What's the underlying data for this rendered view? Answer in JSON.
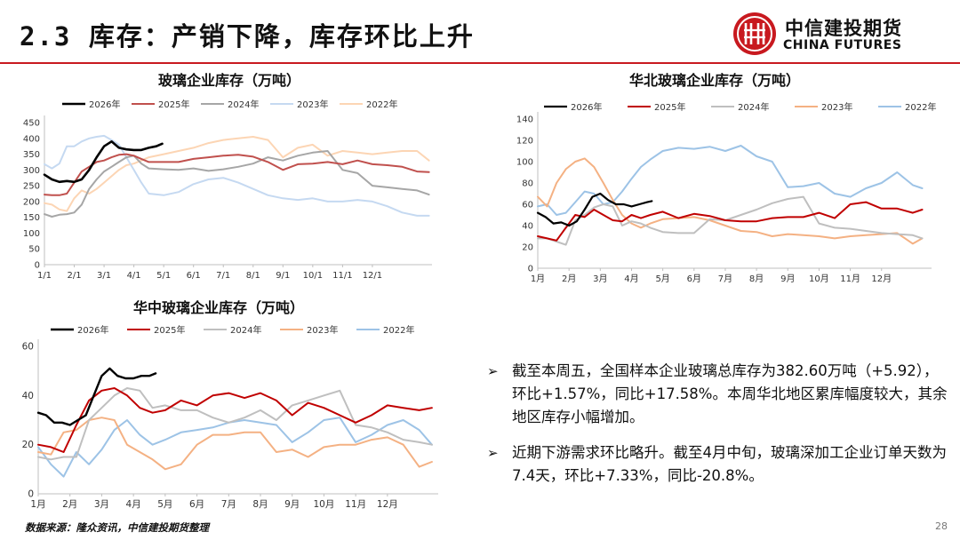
{
  "header": {
    "title": "2.3 库存：产销下降，库存环比上升"
  },
  "logo": {
    "cn": "中信建投期货",
    "en": "CHINA FUTURES"
  },
  "colors": {
    "accent": "#c8191f"
  },
  "chart_data": [
    {
      "type": "line",
      "title": "玻璃企业库存（万吨）",
      "ylim": [
        0,
        450
      ],
      "yticks": [
        0,
        50,
        100,
        150,
        200,
        250,
        300,
        350,
        400,
        450
      ],
      "xticks": [
        "1/1",
        "2/1",
        "3/1",
        "4/1",
        "5/1",
        "6/1",
        "7/1",
        "8/1",
        "9/1",
        "10/1",
        "11/1",
        "12/1"
      ],
      "x_range": [
        0,
        13
      ],
      "series": [
        {
          "name": "2026年",
          "color": "#000000",
          "width": 2.6,
          "x": [
            0,
            0.25,
            0.5,
            0.75,
            1,
            1.25,
            1.5,
            1.75,
            2,
            2.25,
            2.5,
            2.75,
            3,
            3.25,
            3.5,
            3.75,
            3.95
          ],
          "y": [
            285,
            270,
            262,
            265,
            262,
            270,
            300,
            340,
            375,
            390,
            370,
            365,
            363,
            363,
            370,
            375,
            383
          ]
        },
        {
          "name": "2025年",
          "color": "#c0504d",
          "width": 2,
          "x": [
            0,
            0.25,
            0.5,
            0.75,
            1,
            1.25,
            1.5,
            1.75,
            2,
            2.25,
            2.5,
            2.75,
            3,
            3.25,
            3.5,
            4,
            4.5,
            5,
            5.5,
            6,
            6.5,
            7,
            7.5,
            8,
            8.5,
            9,
            9.5,
            10,
            10.5,
            11,
            11.5,
            12,
            12.5,
            12.9
          ],
          "y": [
            222,
            220,
            220,
            225,
            260,
            295,
            310,
            325,
            330,
            340,
            348,
            350,
            345,
            335,
            325,
            325,
            325,
            335,
            340,
            345,
            348,
            342,
            325,
            300,
            318,
            320,
            325,
            318,
            330,
            318,
            315,
            310,
            295,
            293
          ]
        },
        {
          "name": "2024年",
          "color": "#a6a6a6",
          "width": 2,
          "x": [
            0,
            0.25,
            0.5,
            0.75,
            1,
            1.25,
            1.5,
            1.75,
            2,
            2.25,
            2.5,
            2.75,
            3,
            3.25,
            3.5,
            4,
            4.5,
            5,
            5.5,
            6,
            6.5,
            7,
            7.5,
            8,
            8.5,
            9,
            9.5,
            10,
            10.5,
            11,
            11.5,
            12,
            12.5,
            12.9
          ],
          "y": [
            160,
            152,
            158,
            160,
            165,
            190,
            240,
            270,
            295,
            310,
            325,
            340,
            345,
            320,
            305,
            302,
            300,
            305,
            297,
            302,
            310,
            320,
            340,
            330,
            345,
            355,
            360,
            300,
            290,
            250,
            245,
            240,
            235,
            222
          ]
        },
        {
          "name": "2023年",
          "color": "#c5d9f1",
          "width": 2,
          "x": [
            0,
            0.25,
            0.5,
            0.75,
            1,
            1.25,
            1.5,
            1.75,
            2,
            2.25,
            2.5,
            2.75,
            3,
            3.25,
            3.5,
            4,
            4.5,
            5,
            5.5,
            6,
            6.5,
            7,
            7.5,
            8,
            8.5,
            9,
            9.5,
            10,
            10.5,
            11,
            11.5,
            12,
            12.5,
            12.9
          ],
          "y": [
            318,
            305,
            320,
            375,
            375,
            390,
            400,
            405,
            408,
            395,
            380,
            340,
            300,
            260,
            225,
            220,
            230,
            255,
            270,
            275,
            260,
            240,
            220,
            210,
            205,
            210,
            200,
            200,
            205,
            200,
            185,
            165,
            155,
            155
          ]
        },
        {
          "name": "2022年",
          "color": "#fcd5b4",
          "width": 2,
          "x": [
            0,
            0.25,
            0.5,
            0.75,
            1,
            1.25,
            1.5,
            1.75,
            2,
            2.25,
            2.5,
            2.75,
            3,
            3.25,
            3.5,
            4,
            4.5,
            5,
            5.5,
            6,
            6.5,
            7,
            7.5,
            8,
            8.5,
            9,
            9.5,
            10,
            10.5,
            11,
            11.5,
            12,
            12.5,
            12.9
          ],
          "y": [
            195,
            190,
            175,
            170,
            210,
            235,
            225,
            240,
            260,
            280,
            300,
            315,
            320,
            330,
            340,
            350,
            360,
            370,
            385,
            395,
            400,
            405,
            395,
            340,
            370,
            380,
            345,
            360,
            355,
            350,
            355,
            360,
            360,
            330
          ]
        }
      ]
    },
    {
      "type": "line",
      "title": "华北玻璃企业库存（万吨）",
      "ylim": [
        0,
        140
      ],
      "yticks": [
        0,
        20,
        40,
        60,
        80,
        100,
        120,
        140
      ],
      "xticks": [
        "1月",
        "2月",
        "3月",
        "4月",
        "5月",
        "6月",
        "7月",
        "8月",
        "9月",
        "10月",
        "11月",
        "12月"
      ],
      "x_range": [
        0,
        12.6
      ],
      "series": [
        {
          "name": "2026年",
          "color": "#000000",
          "width": 2.2,
          "x": [
            0,
            0.25,
            0.5,
            0.75,
            1,
            1.25,
            1.5,
            1.75,
            2,
            2.25,
            2.5,
            2.75,
            3,
            3.25,
            3.5,
            3.65
          ],
          "y": [
            52,
            48,
            42,
            43,
            40,
            44,
            55,
            67,
            70,
            64,
            60,
            60,
            58,
            60,
            62,
            63
          ]
        },
        {
          "name": "2025年",
          "color": "#c00000",
          "width": 2,
          "x": [
            0,
            0.3,
            0.6,
            0.9,
            1.2,
            1.5,
            1.8,
            2.1,
            2.4,
            2.7,
            3,
            3.3,
            3.6,
            4,
            4.5,
            5,
            5.5,
            6,
            6.5,
            7,
            7.5,
            8,
            8.5,
            9,
            9.5,
            10,
            10.5,
            11,
            11.5,
            12,
            12.3
          ],
          "y": [
            30,
            28,
            26,
            38,
            50,
            48,
            55,
            50,
            45,
            44,
            50,
            47,
            50,
            53,
            47,
            51,
            49,
            45,
            44,
            44,
            47,
            48,
            48,
            52,
            47,
            60,
            62,
            56,
            56,
            52,
            55
          ]
        },
        {
          "name": "2024年",
          "color": "#bfbfbf",
          "width": 2,
          "x": [
            0,
            0.3,
            0.6,
            0.9,
            1.2,
            1.5,
            1.8,
            2.1,
            2.4,
            2.7,
            3,
            3.3,
            3.6,
            4,
            4.5,
            5,
            5.5,
            6,
            6.5,
            7,
            7.5,
            8,
            8.5,
            9,
            9.5,
            10,
            10.5,
            11,
            11.5,
            12,
            12.3
          ],
          "y": [
            28,
            28,
            25,
            22,
            45,
            50,
            57,
            60,
            58,
            40,
            44,
            42,
            38,
            34,
            33,
            33,
            46,
            45,
            50,
            55,
            61,
            65,
            67,
            42,
            38,
            37,
            35,
            33,
            32,
            31,
            28
          ]
        },
        {
          "name": "2023年",
          "color": "#f4b183",
          "width": 2,
          "x": [
            0,
            0.3,
            0.6,
            0.9,
            1.2,
            1.5,
            1.8,
            2.1,
            2.4,
            2.7,
            3,
            3.3,
            3.6,
            4,
            4.5,
            5,
            5.5,
            6,
            6.5,
            7,
            7.5,
            8,
            8.5,
            9,
            9.5,
            10,
            10.5,
            11,
            11.5,
            12,
            12.3
          ],
          "y": [
            67,
            58,
            80,
            93,
            100,
            103,
            95,
            80,
            64,
            50,
            42,
            38,
            42,
            46,
            47,
            48,
            45,
            40,
            35,
            34,
            30,
            32,
            31,
            30,
            28,
            30,
            31,
            32,
            33,
            23,
            28
          ]
        },
        {
          "name": "2022年",
          "color": "#9dc3e6",
          "width": 2,
          "x": [
            0,
            0.3,
            0.6,
            0.9,
            1.2,
            1.5,
            1.8,
            2.1,
            2.4,
            2.7,
            3,
            3.3,
            3.6,
            4,
            4.5,
            5,
            5.5,
            6,
            6.5,
            7,
            7.5,
            8,
            8.5,
            9,
            9.5,
            10,
            10.5,
            11,
            11.5,
            12,
            12.3
          ],
          "y": [
            58,
            60,
            50,
            52,
            62,
            72,
            70,
            60,
            62,
            72,
            84,
            95,
            102,
            110,
            113,
            112,
            114,
            110,
            115,
            105,
            100,
            76,
            77,
            80,
            70,
            67,
            75,
            80,
            90,
            78,
            75
          ]
        }
      ]
    },
    {
      "type": "line",
      "title": "华中玻璃企业库存（万吨）",
      "ylim": [
        0,
        60
      ],
      "yticks": [
        0,
        20,
        40,
        60
      ],
      "xticks": [
        "1月",
        "2月",
        "3月",
        "4月",
        "5月",
        "6月",
        "7月",
        "8月",
        "9月",
        "10月",
        "11月",
        "12月"
      ],
      "x_range": [
        0,
        12.6
      ],
      "series": [
        {
          "name": "2026年",
          "color": "#000000",
          "width": 2.4,
          "x": [
            0,
            0.25,
            0.5,
            0.75,
            1,
            1.25,
            1.5,
            1.75,
            2,
            2.25,
            2.5,
            2.75,
            3,
            3.25,
            3.5,
            3.7
          ],
          "y": [
            33,
            32,
            29,
            29,
            28,
            30,
            32,
            40,
            48,
            51,
            48,
            47,
            47,
            48,
            48,
            49
          ]
        },
        {
          "name": "2025年",
          "color": "#c00000",
          "width": 2,
          "x": [
            0,
            0.4,
            0.8,
            1.2,
            1.6,
            2,
            2.4,
            2.8,
            3.2,
            3.6,
            4,
            4.5,
            5,
            5.5,
            6,
            6.5,
            7,
            7.5,
            8,
            8.5,
            9,
            9.5,
            10,
            10.5,
            11,
            11.5,
            12,
            12.4
          ],
          "y": [
            20,
            19,
            17,
            28,
            38,
            42,
            43,
            40,
            35,
            33,
            34,
            38,
            36,
            40,
            41,
            39,
            41,
            38,
            32,
            37,
            35,
            32,
            29,
            32,
            36,
            35,
            34,
            35
          ]
        },
        {
          "name": "2024年",
          "color": "#bfbfbf",
          "width": 2,
          "x": [
            0,
            0.4,
            0.8,
            1.2,
            1.6,
            2,
            2.4,
            2.8,
            3.2,
            3.6,
            4,
            4.5,
            5,
            5.5,
            6,
            6.5,
            7,
            7.5,
            8,
            8.5,
            9,
            9.5,
            10,
            10.5,
            11,
            11.5,
            12,
            12.4
          ],
          "y": [
            15,
            14,
            15,
            15,
            30,
            35,
            40,
            43,
            42,
            35,
            36,
            34,
            34,
            31,
            29,
            31,
            34,
            30,
            36,
            38,
            40,
            42,
            28,
            27,
            25,
            22,
            21,
            20
          ]
        },
        {
          "name": "2023年",
          "color": "#f4b183",
          "width": 2,
          "x": [
            0,
            0.4,
            0.8,
            1.2,
            1.6,
            2,
            2.4,
            2.8,
            3.2,
            3.6,
            4,
            4.5,
            5,
            5.5,
            6,
            6.5,
            7,
            7.5,
            8,
            8.5,
            9,
            9.5,
            10,
            10.5,
            11,
            11.5,
            12,
            12.4
          ],
          "y": [
            17,
            16,
            25,
            26,
            30,
            31,
            30,
            20,
            17,
            14,
            10,
            12,
            20,
            24,
            24,
            25,
            25,
            17,
            18,
            15,
            19,
            20,
            20,
            22,
            23,
            20,
            11,
            13
          ]
        },
        {
          "name": "2022年",
          "color": "#9dc3e6",
          "width": 2,
          "x": [
            0,
            0.4,
            0.8,
            1.2,
            1.6,
            2,
            2.4,
            2.8,
            3.2,
            3.6,
            4,
            4.5,
            5,
            5.5,
            6,
            6.5,
            7,
            7.5,
            8,
            8.5,
            9,
            9.5,
            10,
            10.5,
            11,
            11.5,
            12,
            12.4
          ],
          "y": [
            19,
            12,
            7,
            17,
            12,
            18,
            26,
            30,
            24,
            20,
            22,
            25,
            26,
            27,
            29,
            30,
            29,
            28,
            21,
            25,
            30,
            31,
            21,
            24,
            28,
            30,
            26,
            20
          ]
        }
      ]
    }
  ],
  "bullets": [
    {
      "marker": "➢",
      "text": "截至本周五，全国样本企业玻璃总库存为382.60万吨（+5.92），环比+1.57%，同比+17.58%。本周华北地区累库幅度较大，其余地区库存小幅增加。"
    },
    {
      "marker": "➢",
      "text": "近期下游需求环比略升。截至4月中旬，玻璃深加工企业订单天数为7.4天，环比+7.33%，同比-20.8%。"
    }
  ],
  "footer": {
    "source": "数据来源：隆众资讯，中信建投期货整理",
    "page": "28"
  }
}
